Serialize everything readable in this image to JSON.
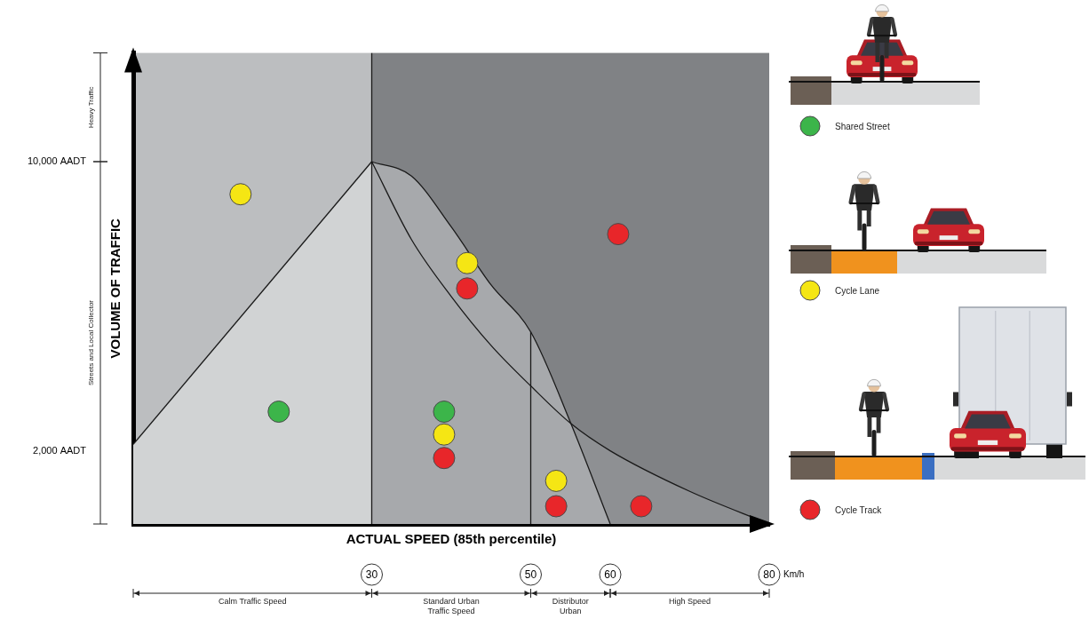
{
  "chart_data": {
    "type": "scatter",
    "x_label": "ACTUAL SPEED (85th percentile)",
    "y_label": "VOLUME OF TRAFFIC",
    "x_unit": "Km/h",
    "xlim": [
      0,
      80
    ],
    "xticks": [
      30,
      50,
      60,
      80
    ],
    "ylim": [
      0,
      13000
    ],
    "yticks": [
      {
        "value": 2000,
        "label": "2,000 AADT"
      },
      {
        "value": 10000,
        "label": "10,000 AADT"
      }
    ],
    "grid": false,
    "legend": "right",
    "speed_bands": [
      {
        "from": 0,
        "to": 30,
        "label": "Calm Traffic Speed"
      },
      {
        "from": 30,
        "to": 50,
        "label": "Standard Urban Traffic Speed"
      },
      {
        "from": 50,
        "to": 60,
        "label": "Distributor Urban"
      },
      {
        "from": 60,
        "to": 80,
        "label": "High Speed"
      }
    ],
    "traffic_bands": [
      {
        "from": 10000,
        "to": 13000,
        "label": "Heavy Traffic"
      },
      {
        "from": 0,
        "to": 10000,
        "label": "Streets and Local Collector"
      }
    ],
    "boundaries": [
      {
        "x": [
          0,
          30
        ],
        "values": [
          2200,
          10000
        ],
        "color": "#d1d3d4"
      },
      {
        "x": [
          30,
          35,
          40,
          45,
          50,
          55,
          60,
          70,
          80
        ],
        "values": [
          10000,
          7850,
          6280,
          4930,
          3810,
          2780,
          2020,
          900,
          0
        ],
        "color": "#8e9093"
      },
      {
        "x": [
          30,
          35,
          40,
          45,
          50,
          55,
          60
        ],
        "values": [
          10000,
          9600,
          8200,
          6600,
          5300,
          2800,
          0
        ],
        "color": "#a7a9ac"
      },
      {
        "x": [
          30,
          30
        ],
        "values": [
          0,
          13000
        ]
      },
      {
        "x": [
          50,
          50
        ],
        "values": [
          0,
          5300
        ]
      }
    ],
    "series": [
      {
        "name": "Shared Street",
        "color": "#3cb54a",
        "marker": "circle",
        "x": [
          18.3,
          39.1
        ],
        "values": [
          3100,
          3100
        ]
      },
      {
        "name": "Cycle Lane",
        "color": "#f5e614",
        "marker": "circle",
        "x": [
          13.5,
          42,
          39.1,
          53.2
        ],
        "values": [
          9100,
          7200,
          2470,
          1190
        ]
      },
      {
        "name": "Cycle Track",
        "color": "#e8262a",
        "marker": "circle",
        "x": [
          42,
          61,
          39.1,
          53.2,
          63.9
        ],
        "values": [
          6500,
          8000,
          1820,
          490,
          490
        ]
      }
    ]
  }
}
